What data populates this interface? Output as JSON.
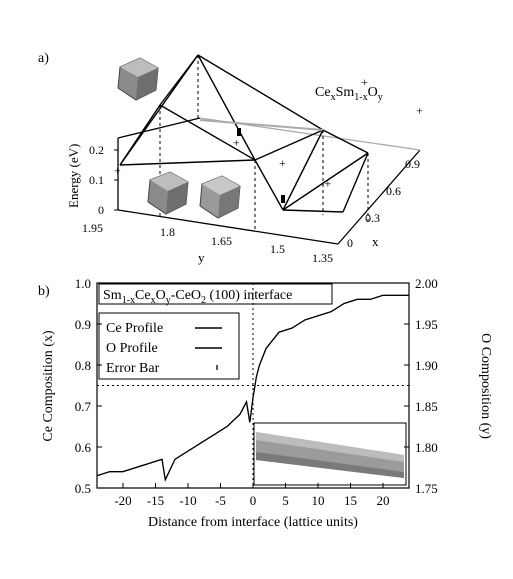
{
  "panels": {
    "a_label": "a)",
    "b_label": "b)"
  },
  "chart_data": [
    {
      "type": "scatter",
      "panel": "a",
      "title_main": "Ce",
      "title_sub1": "x",
      "title_mid": "Sm",
      "title_sub2": "1-x",
      "title_o": "O",
      "title_sub3": "y",
      "zlabel": "Energy (eV)",
      "ylabel": "y",
      "xlabel": "x",
      "z_ticks": [
        "0",
        "0.1",
        "0.2"
      ],
      "y_ticks": [
        "1.95",
        "1.8",
        "1.65",
        "1.5",
        "1.35"
      ],
      "x_ticks": [
        "0",
        "0.3",
        "0.6",
        "0.9"
      ],
      "points": [
        {
          "x": 0.0,
          "y": 1.95,
          "z": 0.12
        },
        {
          "x": 0.0,
          "y": 1.5,
          "z": 0.22
        },
        {
          "x": 0.5,
          "y": 1.75,
          "z": 0.08
        },
        {
          "x": 0.5,
          "y": 1.5,
          "z": 0.0
        },
        {
          "x": 0.9,
          "y": 1.5,
          "z": 0.18
        },
        {
          "x": 0.9,
          "y": 1.35,
          "z": 0.12
        }
      ]
    },
    {
      "type": "line",
      "panel": "b",
      "title_a": "Sm",
      "title_b": "1-x",
      "title_c": "Ce",
      "title_d": "x",
      "title_e": "O",
      "title_f": "y",
      "title_g": "-CeO",
      "title_h": "2",
      "title_i": " (100) interface",
      "xlabel": "Distance from interface (lattice units)",
      "ylabel_left": "Ce Composition (x)",
      "ylabel_right": "O Composition (y)",
      "xlim": [
        -24,
        24
      ],
      "ylim_left": [
        0.5,
        1.0
      ],
      "ylim_right": [
        1.75,
        2.0
      ],
      "x_ticks": [
        "-20",
        "-15",
        "-10",
        "-5",
        "0",
        "5",
        "10",
        "15",
        "20"
      ],
      "y_ticks_left": [
        "0.5",
        "0.6",
        "0.7",
        "0.8",
        "0.9",
        "1.0"
      ],
      "y_ticks_right": [
        "1.75",
        "1.80",
        "1.85",
        "1.90",
        "1.95",
        "2.00"
      ],
      "legend": [
        {
          "label": "Ce Profile"
        },
        {
          "label": "O Profile"
        },
        {
          "label": "Error Bar"
        }
      ],
      "hline_y": 0.75,
      "vline_x": 0,
      "series": [
        {
          "name": "Ce Profile",
          "x": [
            -24,
            -22,
            -20,
            -18,
            -16,
            -14,
            -13.5,
            -12,
            -10,
            -8,
            -6,
            -4,
            -2,
            -1,
            -0.5,
            0,
            0.5,
            1,
            2,
            3,
            4,
            6,
            8,
            10,
            12,
            14,
            16,
            18,
            20,
            22,
            24
          ],
          "values": [
            0.53,
            0.54,
            0.54,
            0.55,
            0.56,
            0.57,
            0.52,
            0.57,
            0.59,
            0.61,
            0.63,
            0.65,
            0.68,
            0.71,
            0.66,
            0.72,
            0.77,
            0.8,
            0.84,
            0.86,
            0.88,
            0.89,
            0.91,
            0.92,
            0.93,
            0.95,
            0.96,
            0.96,
            0.97,
            0.97,
            0.97
          ]
        },
        {
          "name": "O Profile",
          "x": [
            -24,
            -22,
            -20,
            -18,
            -16,
            -14,
            -13.5,
            -12,
            -10,
            -8,
            -6,
            -4,
            -2,
            -1,
            -0.5,
            0,
            0.5,
            1,
            2,
            3,
            4,
            6,
            8,
            10,
            12,
            14,
            16,
            18,
            20,
            22,
            24
          ],
          "values": [
            1.765,
            1.77,
            1.77,
            1.775,
            1.78,
            1.785,
            1.76,
            1.785,
            1.795,
            1.805,
            1.815,
            1.825,
            1.84,
            1.855,
            1.83,
            1.86,
            1.885,
            1.9,
            1.92,
            1.93,
            1.94,
            1.945,
            1.955,
            1.96,
            1.965,
            1.975,
            1.98,
            1.98,
            1.985,
            1.985,
            1.985
          ]
        }
      ]
    }
  ]
}
